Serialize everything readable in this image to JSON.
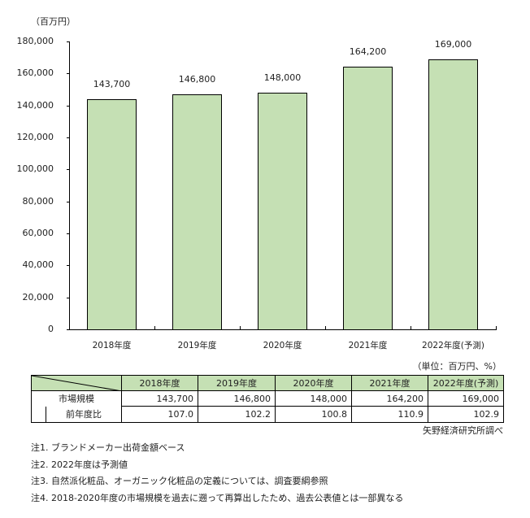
{
  "chart_data": {
    "type": "bar",
    "title": "",
    "ylabel": "（百万円）",
    "xlabel": "",
    "ylim": [
      0,
      180000
    ],
    "yticks": [
      0,
      20000,
      40000,
      60000,
      80000,
      100000,
      120000,
      140000,
      160000,
      180000
    ],
    "ytick_labels": [
      "0",
      "20,000",
      "40,000",
      "60,000",
      "80,000",
      "100,000",
      "120,000",
      "140,000",
      "160,000",
      "180,000"
    ],
    "categories": [
      "2018年度",
      "2019年度",
      "2020年度",
      "2021年度",
      "2022年度(予測)"
    ],
    "values": [
      143700,
      146800,
      148000,
      164200,
      169000
    ],
    "value_labels": [
      "143,700",
      "146,800",
      "148,000",
      "164,200",
      "169,000"
    ],
    "bar_color": "#C5E0B4",
    "grid": false,
    "legend": null
  },
  "table": {
    "unit_note": "（単位：百万円、%）",
    "headers": [
      "2018年度",
      "2019年度",
      "2020年度",
      "2021年度",
      "2022年度(予測)"
    ],
    "rows": [
      {
        "label": "市場規模",
        "values": [
          "143,700",
          "146,800",
          "148,000",
          "164,200",
          "169,000"
        ]
      },
      {
        "label": "前年度比",
        "values": [
          "107.0",
          "102.2",
          "100.8",
          "110.9",
          "102.9"
        ]
      }
    ],
    "header_color": "#C5E0B4"
  },
  "source": "矢野経済研究所調べ",
  "notes": [
    "注1. ブランドメーカー出荷金額ベース",
    "注2. 2022年度は予測値",
    "注3. 自然派化粧品、オーガニック化粧品の定義については、調査要綱参照",
    "注4. 2018-2020年度の市場規模を過去に遡って再算出したため、過去公表値とは一部異なる"
  ]
}
